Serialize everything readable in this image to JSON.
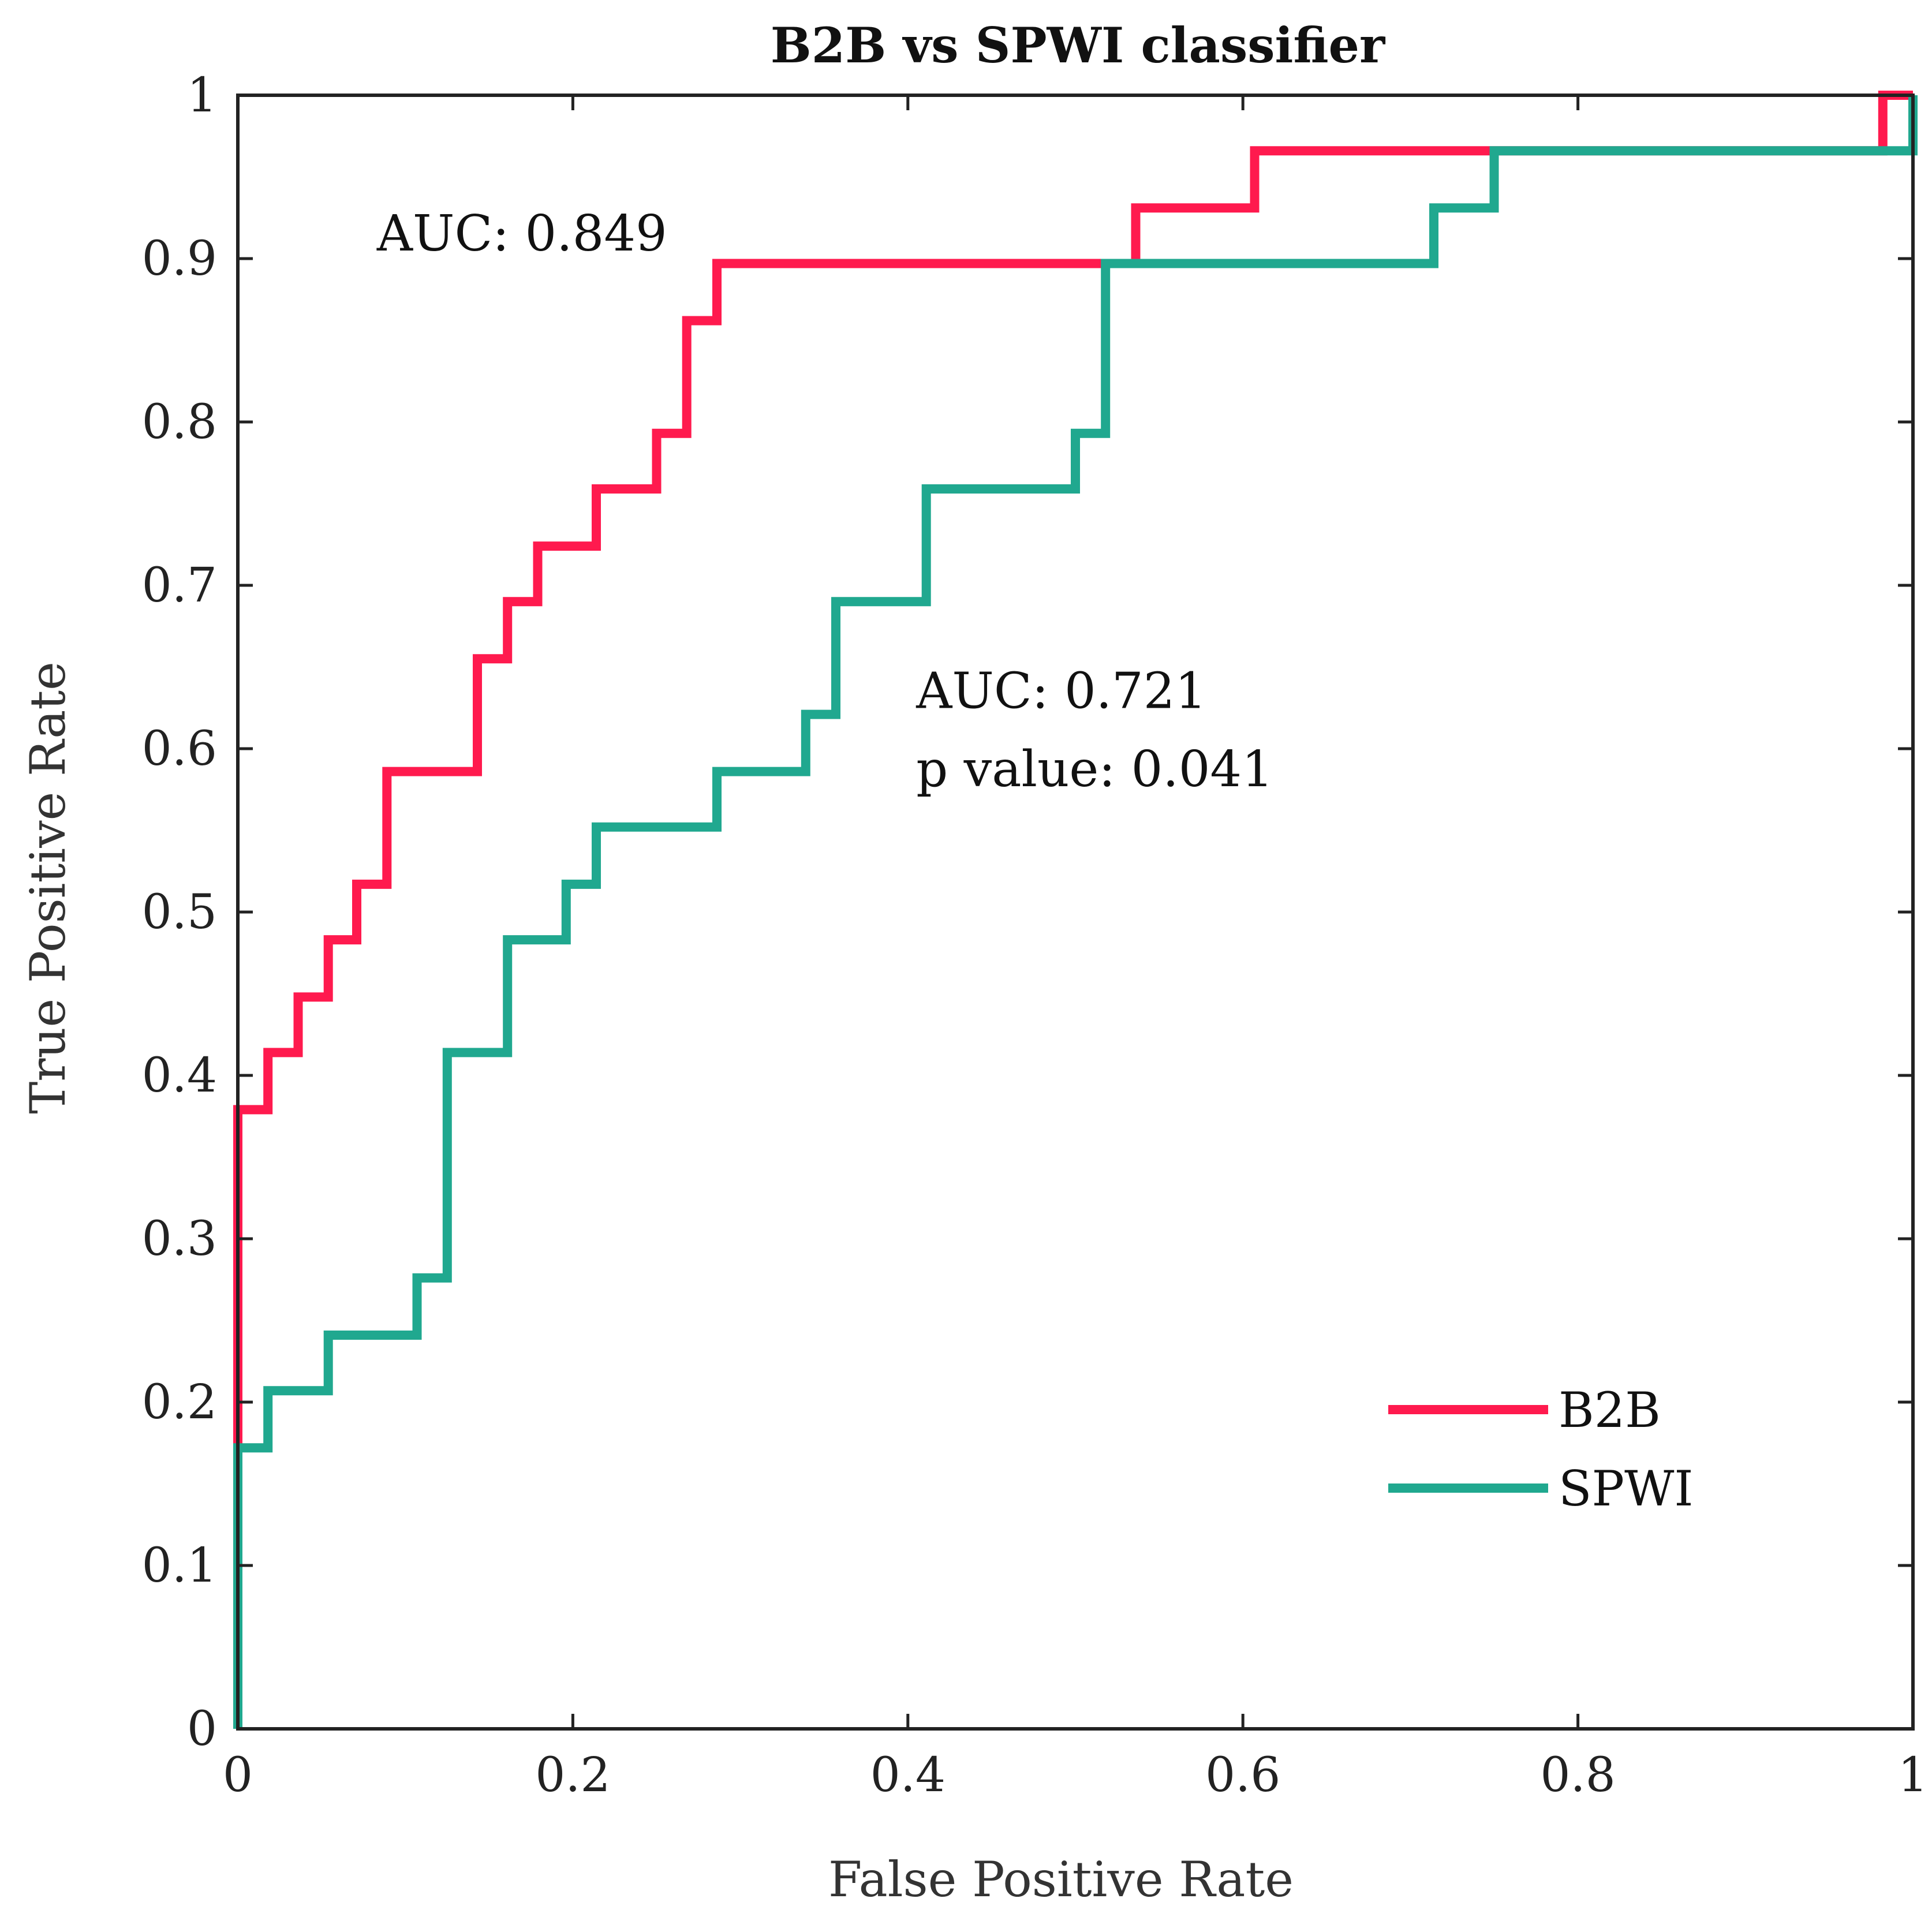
{
  "chart_data": {
    "type": "line",
    "title": "B2B vs SPWI classifier",
    "xlabel": "False Positive Rate",
    "ylabel": "True Positive Rate",
    "xlim": [
      0,
      1
    ],
    "ylim": [
      0,
      1
    ],
    "xticks": [
      0,
      0.2,
      0.4,
      0.6,
      0.8,
      1
    ],
    "yticks": [
      0,
      0.1,
      0.2,
      0.3,
      0.4,
      0.5,
      0.6,
      0.7,
      0.8,
      0.9,
      1
    ],
    "xtick_labels": [
      "0",
      "0.2",
      "0.4",
      "0.6",
      "0.8",
      "1"
    ],
    "ytick_labels": [
      "0",
      "0.1",
      "0.2",
      "0.3",
      "0.4",
      "0.5",
      "0.6",
      "0.7",
      "0.8",
      "0.9",
      "1"
    ],
    "legend_position": "bottom-right",
    "series": [
      {
        "name": "B2B",
        "color": "#ff1a4e",
        "x": [
          0,
          0,
          0.018,
          0.018,
          0.036,
          0.036,
          0.054,
          0.054,
          0.071,
          0.071,
          0.089,
          0.089,
          0.143,
          0.143,
          0.161,
          0.161,
          0.179,
          0.179,
          0.214,
          0.214,
          0.25,
          0.25,
          0.268,
          0.268,
          0.286,
          0.286,
          0.536,
          0.536,
          0.607,
          0.607,
          0.982,
          0.982,
          1
        ],
        "y": [
          0,
          0.379,
          0.379,
          0.414,
          0.414,
          0.448,
          0.448,
          0.483,
          0.483,
          0.517,
          0.517,
          0.586,
          0.586,
          0.655,
          0.655,
          0.69,
          0.69,
          0.724,
          0.724,
          0.759,
          0.759,
          0.793,
          0.793,
          0.862,
          0.862,
          0.897,
          0.897,
          0.931,
          0.931,
          0.966,
          0.966,
          1,
          1
        ]
      },
      {
        "name": "SPWI",
        "color": "#20a88f",
        "x": [
          0,
          0,
          0.018,
          0.018,
          0.054,
          0.054,
          0.107,
          0.107,
          0.125,
          0.125,
          0.161,
          0.161,
          0.196,
          0.196,
          0.214,
          0.214,
          0.286,
          0.286,
          0.339,
          0.339,
          0.357,
          0.357,
          0.411,
          0.411,
          0.5,
          0.5,
          0.518,
          0.518,
          0.714,
          0.714,
          0.75,
          0.75,
          1,
          1
        ],
        "y": [
          0,
          0.172,
          0.172,
          0.207,
          0.207,
          0.241,
          0.241,
          0.276,
          0.276,
          0.414,
          0.414,
          0.483,
          0.483,
          0.517,
          0.517,
          0.552,
          0.552,
          0.586,
          0.586,
          0.621,
          0.621,
          0.69,
          0.69,
          0.759,
          0.759,
          0.793,
          0.793,
          0.897,
          0.897,
          0.931,
          0.931,
          0.966,
          0.966,
          1
        ]
      }
    ],
    "annotations": [
      {
        "text": "AUC: 0.849",
        "x": 0.083,
        "y": 0.905
      },
      {
        "text": "AUC: 0.721",
        "x": 0.405,
        "y": 0.625
      },
      {
        "text": "p value: 0.041",
        "x": 0.405,
        "y": 0.577
      }
    ]
  }
}
